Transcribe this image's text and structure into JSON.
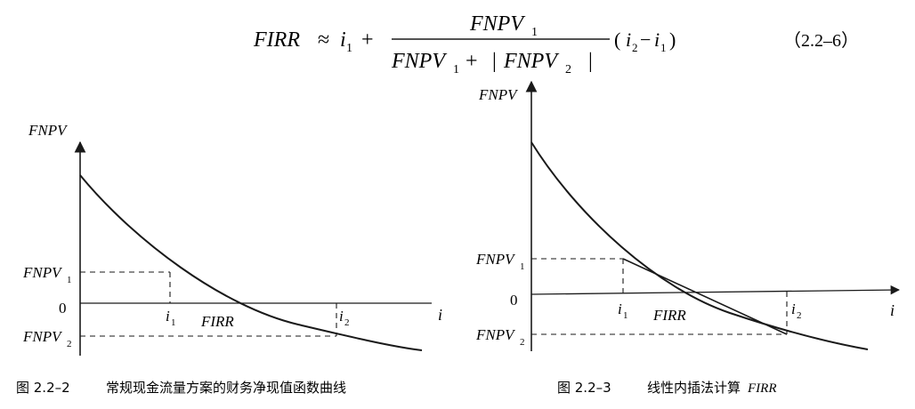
{
  "formula": {
    "lhs": "FIRR",
    "approx": "≈",
    "i1_base": "i",
    "i1_sub": "1",
    "plus": "+",
    "num_base": "FNPV",
    "num_sub": "1",
    "den_a_base": "FNPV",
    "den_a_sub": "1",
    "den_plus": "+",
    "den_abs_open": "|",
    "den_b_base": "FNPV",
    "den_b_sub": "2",
    "den_abs_close": "|",
    "paren_open": "(",
    "p_i2_base": "i",
    "p_i2_sub": "2",
    "minus": "−",
    "p_i1_base": "i",
    "p_i1_sub": "1",
    "paren_close": ")",
    "eq_number": "（2.2–6）"
  },
  "figure_left": {
    "y_axis_label": "FNPV",
    "x_axis_label": "i",
    "origin_label": "0",
    "fnpv1_base": "FNPV",
    "fnpv1_sub": "1",
    "fnpv2_base": "FNPV",
    "fnpv2_sub": "2",
    "i1_base": "i",
    "i1_sub": "1",
    "i2_base": "i",
    "i2_sub": "2",
    "firr_label": "FIRR",
    "caption_prefix": "图 2.2–2",
    "caption_text": "常规现金流量方案的财务净现值函数曲线"
  },
  "figure_right": {
    "y_axis_label": "FNPV",
    "x_axis_label": "i",
    "origin_label": "0",
    "fnpv1_base": "FNPV",
    "fnpv1_sub": "1",
    "fnpv2_base": "FNPV",
    "fnpv2_sub": "2",
    "i1_base": "i",
    "i1_sub": "1",
    "i2_base": "i",
    "i2_sub": "2",
    "firr_label": "FIRR",
    "caption_prefix": "图 2.2–3",
    "caption_text_plain": "线性内插法计算",
    "caption_text_italic": "FIRR"
  }
}
